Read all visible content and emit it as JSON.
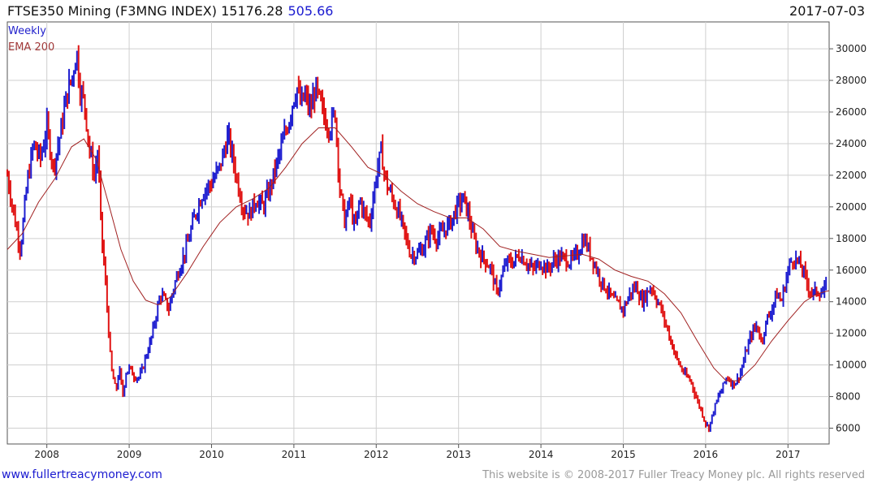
{
  "header": {
    "title": "FTSE350 Mining (F3MNG INDEX)",
    "last": "15176.28",
    "change": "505.66",
    "date": "2017-07-03"
  },
  "legend": {
    "series1": "Weekly",
    "series2": "EMA 200"
  },
  "footer": {
    "url": "www.fullertreacymoney.com",
    "copyright": "This website is © 2008-2017 Fuller Treacy Money plc. All rights reserved"
  },
  "colors": {
    "up": "#1f1fd0",
    "down": "#e01414",
    "ema": "#a02020",
    "grid": "#cfcfcf"
  },
  "chart_data": {
    "type": "line",
    "x_ticks": [
      "2008",
      "2009",
      "2010",
      "2011",
      "2012",
      "2013",
      "2014",
      "2015",
      "2016",
      "2017"
    ],
    "y_ticks": [
      6000,
      8000,
      10000,
      12000,
      14000,
      16000,
      18000,
      20000,
      22000,
      24000,
      26000,
      28000,
      30000
    ],
    "xlim": [
      2007.52,
      2017.5
    ],
    "ylim": [
      5000,
      31700
    ],
    "grid": true,
    "series": [
      {
        "name": "Weekly",
        "points": [
          [
            2007.52,
            22000
          ],
          [
            2007.6,
            19500
          ],
          [
            2007.68,
            17300
          ],
          [
            2007.76,
            21500
          ],
          [
            2007.84,
            24000
          ],
          [
            2007.92,
            23000
          ],
          [
            2008.0,
            25000
          ],
          [
            2008.08,
            22500
          ],
          [
            2008.16,
            24500
          ],
          [
            2008.24,
            27000
          ],
          [
            2008.32,
            28500
          ],
          [
            2008.36,
            30000
          ],
          [
            2008.4,
            27500
          ],
          [
            2008.46,
            26500
          ],
          [
            2008.52,
            23500
          ],
          [
            2008.58,
            22000
          ],
          [
            2008.62,
            23500
          ],
          [
            2008.66,
            18500
          ],
          [
            2008.7,
            16000
          ],
          [
            2008.74,
            13000
          ],
          [
            2008.78,
            9800
          ],
          [
            2008.84,
            8300
          ],
          [
            2008.88,
            9800
          ],
          [
            2008.92,
            8000
          ],
          [
            2008.96,
            9500
          ],
          [
            2009.0,
            9800
          ],
          [
            2009.06,
            9300
          ],
          [
            2009.12,
            9200
          ],
          [
            2009.16,
            9700
          ],
          [
            2009.2,
            10500
          ],
          [
            2009.26,
            11500
          ],
          [
            2009.32,
            13000
          ],
          [
            2009.38,
            14500
          ],
          [
            2009.44,
            14000
          ],
          [
            2009.48,
            13500
          ],
          [
            2009.52,
            14500
          ],
          [
            2009.6,
            16000
          ],
          [
            2009.7,
            17500
          ],
          [
            2009.8,
            19500
          ],
          [
            2009.9,
            21000
          ],
          [
            2010.0,
            21500
          ],
          [
            2010.1,
            22500
          ],
          [
            2010.2,
            24500
          ],
          [
            2010.26,
            23000
          ],
          [
            2010.32,
            21500
          ],
          [
            2010.38,
            20000
          ],
          [
            2010.46,
            19500
          ],
          [
            2010.54,
            20500
          ],
          [
            2010.62,
            20000
          ],
          [
            2010.7,
            21000
          ],
          [
            2010.78,
            22500
          ],
          [
            2010.86,
            24000
          ],
          [
            2010.94,
            25500
          ],
          [
            2011.0,
            27000
          ],
          [
            2011.04,
            27500
          ],
          [
            2011.08,
            26500
          ],
          [
            2011.14,
            27000
          ],
          [
            2011.2,
            26000
          ],
          [
            2011.26,
            27500
          ],
          [
            2011.32,
            26500
          ],
          [
            2011.38,
            25500
          ],
          [
            2011.44,
            25000
          ],
          [
            2011.5,
            26000
          ],
          [
            2011.56,
            21000
          ],
          [
            2011.62,
            19000
          ],
          [
            2011.68,
            20500
          ],
          [
            2011.74,
            18500
          ],
          [
            2011.8,
            20500
          ],
          [
            2011.86,
            19500
          ],
          [
            2011.92,
            19000
          ],
          [
            2012.0,
            22000
          ],
          [
            2012.06,
            23500
          ],
          [
            2012.12,
            21500
          ],
          [
            2012.2,
            20500
          ],
          [
            2012.28,
            19500
          ],
          [
            2012.36,
            18000
          ],
          [
            2012.42,
            17000
          ],
          [
            2012.5,
            17000
          ],
          [
            2012.58,
            17500
          ],
          [
            2012.66,
            18500
          ],
          [
            2012.74,
            18000
          ],
          [
            2012.82,
            18500
          ],
          [
            2012.9,
            19000
          ],
          [
            2012.98,
            20000
          ],
          [
            2013.06,
            20500
          ],
          [
            2013.12,
            19500
          ],
          [
            2013.18,
            18000
          ],
          [
            2013.26,
            17000
          ],
          [
            2013.34,
            16500
          ],
          [
            2013.4,
            16000
          ],
          [
            2013.46,
            14500
          ],
          [
            2013.52,
            15500
          ],
          [
            2013.58,
            16500
          ],
          [
            2013.66,
            16500
          ],
          [
            2013.74,
            17000
          ],
          [
            2013.82,
            16500
          ],
          [
            2013.9,
            16000
          ],
          [
            2014.0,
            16500
          ],
          [
            2014.08,
            16000
          ],
          [
            2014.14,
            16500
          ],
          [
            2014.22,
            16800
          ],
          [
            2014.3,
            16700
          ],
          [
            2014.36,
            16500
          ],
          [
            2014.44,
            17000
          ],
          [
            2014.52,
            18000
          ],
          [
            2014.56,
            17500
          ],
          [
            2014.62,
            16800
          ],
          [
            2014.68,
            16000
          ],
          [
            2014.74,
            15200
          ],
          [
            2014.8,
            14800
          ],
          [
            2014.86,
            14200
          ],
          [
            2014.94,
            13800
          ],
          [
            2015.0,
            13500
          ],
          [
            2015.08,
            14500
          ],
          [
            2015.16,
            15000
          ],
          [
            2015.22,
            14000
          ],
          [
            2015.28,
            14500
          ],
          [
            2015.34,
            15000
          ],
          [
            2015.4,
            14200
          ],
          [
            2015.46,
            13500
          ],
          [
            2015.52,
            12500
          ],
          [
            2015.58,
            11500
          ],
          [
            2015.64,
            10500
          ],
          [
            2015.7,
            9800
          ],
          [
            2015.76,
            9300
          ],
          [
            2015.82,
            9000
          ],
          [
            2015.88,
            8000
          ],
          [
            2015.94,
            7200
          ],
          [
            2016.0,
            6300
          ],
          [
            2016.04,
            6000
          ],
          [
            2016.08,
            6800
          ],
          [
            2016.14,
            7800
          ],
          [
            2016.2,
            8500
          ],
          [
            2016.26,
            9300
          ],
          [
            2016.32,
            8800
          ],
          [
            2016.38,
            9000
          ],
          [
            2016.44,
            9800
          ],
          [
            2016.5,
            11000
          ],
          [
            2016.56,
            12000
          ],
          [
            2016.62,
            12500
          ],
          [
            2016.68,
            11500
          ],
          [
            2016.74,
            12800
          ],
          [
            2016.8,
            13500
          ],
          [
            2016.86,
            14500
          ],
          [
            2016.92,
            14000
          ],
          [
            2017.0,
            16000
          ],
          [
            2017.06,
            16800
          ],
          [
            2017.12,
            16500
          ],
          [
            2017.18,
            16000
          ],
          [
            2017.24,
            15000
          ],
          [
            2017.3,
            14500
          ],
          [
            2017.36,
            14700
          ],
          [
            2017.42,
            14500
          ],
          [
            2017.48,
            15176
          ]
        ]
      },
      {
        "name": "EMA 200",
        "points": [
          [
            2007.52,
            17300
          ],
          [
            2007.7,
            18300
          ],
          [
            2007.9,
            20300
          ],
          [
            2008.1,
            21800
          ],
          [
            2008.3,
            23800
          ],
          [
            2008.45,
            24300
          ],
          [
            2008.6,
            23000
          ],
          [
            2008.75,
            20200
          ],
          [
            2008.9,
            17300
          ],
          [
            2009.05,
            15300
          ],
          [
            2009.2,
            14100
          ],
          [
            2009.35,
            13800
          ],
          [
            2009.5,
            14300
          ],
          [
            2009.7,
            15800
          ],
          [
            2009.9,
            17500
          ],
          [
            2010.1,
            19000
          ],
          [
            2010.3,
            20000
          ],
          [
            2010.5,
            20500
          ],
          [
            2010.7,
            21200
          ],
          [
            2010.9,
            22500
          ],
          [
            2011.1,
            24000
          ],
          [
            2011.3,
            25000
          ],
          [
            2011.5,
            25000
          ],
          [
            2011.7,
            23800
          ],
          [
            2011.9,
            22500
          ],
          [
            2012.1,
            22000
          ],
          [
            2012.3,
            21000
          ],
          [
            2012.5,
            20200
          ],
          [
            2012.7,
            19700
          ],
          [
            2012.9,
            19300
          ],
          [
            2013.1,
            19300
          ],
          [
            2013.3,
            18600
          ],
          [
            2013.5,
            17500
          ],
          [
            2013.7,
            17200
          ],
          [
            2013.9,
            17000
          ],
          [
            2014.1,
            16800
          ],
          [
            2014.3,
            16900
          ],
          [
            2014.5,
            17000
          ],
          [
            2014.7,
            16700
          ],
          [
            2014.9,
            16000
          ],
          [
            2015.1,
            15600
          ],
          [
            2015.3,
            15300
          ],
          [
            2015.5,
            14500
          ],
          [
            2015.7,
            13300
          ],
          [
            2015.9,
            11500
          ],
          [
            2016.1,
            9800
          ],
          [
            2016.25,
            9000
          ],
          [
            2016.4,
            9000
          ],
          [
            2016.6,
            10000
          ],
          [
            2016.8,
            11500
          ],
          [
            2017.0,
            12800
          ],
          [
            2017.2,
            14000
          ],
          [
            2017.35,
            14500
          ],
          [
            2017.5,
            14700
          ]
        ]
      }
    ]
  }
}
